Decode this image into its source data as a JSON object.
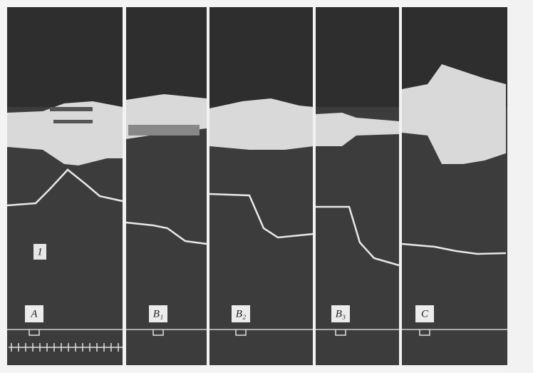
{
  "panels": [
    {
      "label": "A",
      "marker": "1"
    },
    {
      "label": "B₁"
    },
    {
      "label": "B₂"
    },
    {
      "label": "B₃"
    },
    {
      "label": "C"
    }
  ]
}
